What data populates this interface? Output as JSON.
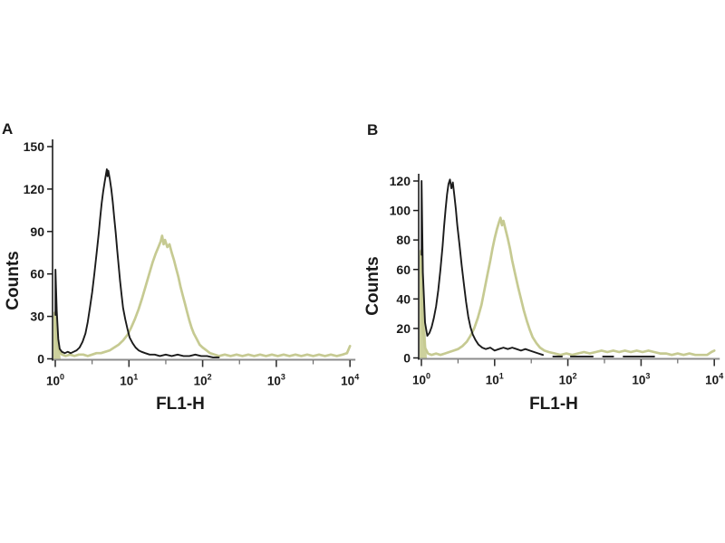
{
  "figure": {
    "background": "#ffffff",
    "panel_count": 2
  },
  "colors": {
    "black_curve": "#1b1b1b",
    "olive_curve": "#c6ca92",
    "olive_fill": "#cdd19d",
    "x_axis_line": "#8c8c8c",
    "axis_text": "#1a1a1a"
  },
  "chart_data": [
    {
      "type": "line",
      "panel_label": "A",
      "xlabel": "FL1-H",
      "ylabel": "Counts",
      "x_scale": "log10",
      "x_tick_base": "10",
      "x_tick_exponents": [
        0,
        1,
        2,
        3,
        4
      ],
      "x_minor_ticks_log": [
        0.5,
        1.5,
        2.5,
        3.5
      ],
      "xlim_log": [
        0,
        4
      ],
      "ylim": [
        0,
        150
      ],
      "yticks": [
        0,
        30,
        60,
        90,
        120,
        150
      ],
      "grid": false,
      "legend": "none",
      "series": [
        {
          "name": "olive-curve",
          "color": "#c6ca92",
          "stroke_width": 2.7,
          "left_spike_height": 33,
          "points": [
            [
              0.0,
              33
            ],
            [
              0.02,
              15
            ],
            [
              0.05,
              6
            ],
            [
              0.09,
              3
            ],
            [
              0.14,
              2
            ],
            [
              0.2,
              3
            ],
            [
              0.26,
              2
            ],
            [
              0.32,
              3
            ],
            [
              0.38,
              3
            ],
            [
              0.44,
              2
            ],
            [
              0.5,
              3
            ],
            [
              0.56,
              4
            ],
            [
              0.62,
              4
            ],
            [
              0.68,
              5
            ],
            [
              0.74,
              6
            ],
            [
              0.8,
              8
            ],
            [
              0.86,
              10
            ],
            [
              0.92,
              13
            ],
            [
              0.98,
              17
            ],
            [
              1.03,
              22
            ],
            [
              1.08,
              28
            ],
            [
              1.13,
              35
            ],
            [
              1.18,
              43
            ],
            [
              1.23,
              52
            ],
            [
              1.28,
              61
            ],
            [
              1.32,
              68
            ],
            [
              1.36,
              74
            ],
            [
              1.4,
              79
            ],
            [
              1.43,
              83
            ],
            [
              1.45,
              87
            ],
            [
              1.47,
              81
            ],
            [
              1.49,
              84
            ],
            [
              1.52,
              79
            ],
            [
              1.55,
              81
            ],
            [
              1.58,
              75
            ],
            [
              1.61,
              70
            ],
            [
              1.64,
              64
            ],
            [
              1.67,
              58
            ],
            [
              1.7,
              51
            ],
            [
              1.73,
              45
            ],
            [
              1.76,
              39
            ],
            [
              1.79,
              33
            ],
            [
              1.82,
              27
            ],
            [
              1.85,
              22
            ],
            [
              1.88,
              18
            ],
            [
              1.92,
              14
            ],
            [
              1.96,
              10
            ],
            [
              2.0,
              8
            ],
            [
              2.05,
              6
            ],
            [
              2.1,
              4
            ],
            [
              2.16,
              3
            ],
            [
              2.22,
              2
            ],
            [
              2.3,
              3
            ],
            [
              2.38,
              2
            ],
            [
              2.46,
              3
            ],
            [
              2.54,
              2
            ],
            [
              2.62,
              3
            ],
            [
              2.7,
              2
            ],
            [
              2.78,
              3
            ],
            [
              2.86,
              2
            ],
            [
              2.94,
              3
            ],
            [
              3.02,
              2
            ],
            [
              3.1,
              3
            ],
            [
              3.18,
              2
            ],
            [
              3.26,
              3
            ],
            [
              3.34,
              2
            ],
            [
              3.42,
              3
            ],
            [
              3.5,
              2
            ],
            [
              3.58,
              3
            ],
            [
              3.66,
              2
            ],
            [
              3.74,
              3
            ],
            [
              3.82,
              2
            ],
            [
              3.9,
              3
            ],
            [
              3.96,
              4
            ],
            [
              4.0,
              9
            ]
          ]
        },
        {
          "name": "black-curve",
          "color": "#1b1b1b",
          "stroke_width": 1.9,
          "left_spike_height": 63,
          "points": [
            [
              0.002,
              31
            ],
            [
              0.002,
              63
            ],
            [
              0.02,
              34
            ],
            [
              0.04,
              14
            ],
            [
              0.06,
              7
            ],
            [
              0.09,
              5
            ],
            [
              0.13,
              4
            ],
            [
              0.17,
              5
            ],
            [
              0.21,
              4
            ],
            [
              0.25,
              5
            ],
            [
              0.29,
              6
            ],
            [
              0.33,
              8
            ],
            [
              0.37,
              12
            ],
            [
              0.41,
              18
            ],
            [
              0.44,
              26
            ],
            [
              0.47,
              36
            ],
            [
              0.5,
              47
            ],
            [
              0.53,
              60
            ],
            [
              0.56,
              74
            ],
            [
              0.59,
              89
            ],
            [
              0.61,
              100
            ],
            [
              0.63,
              110
            ],
            [
              0.65,
              118
            ],
            [
              0.67,
              125
            ],
            [
              0.69,
              131
            ],
            [
              0.7,
              134
            ],
            [
              0.71,
              129
            ],
            [
              0.72,
              133
            ],
            [
              0.74,
              127
            ],
            [
              0.76,
              120
            ],
            [
              0.78,
              111
            ],
            [
              0.8,
              100
            ],
            [
              0.82,
              89
            ],
            [
              0.84,
              77
            ],
            [
              0.86,
              66
            ],
            [
              0.88,
              55
            ],
            [
              0.9,
              45
            ],
            [
              0.92,
              36
            ],
            [
              0.95,
              28
            ],
            [
              0.98,
              21
            ],
            [
              1.01,
              15
            ],
            [
              1.05,
              11
            ],
            [
              1.09,
              8
            ],
            [
              1.13,
              6
            ],
            [
              1.17,
              5
            ],
            [
              1.22,
              4
            ],
            [
              1.28,
              3
            ],
            [
              1.35,
              3
            ],
            [
              1.42,
              2
            ],
            [
              1.5,
              3
            ],
            [
              1.58,
              2
            ],
            [
              1.66,
              3
            ],
            [
              1.74,
              2
            ],
            [
              1.82,
              2
            ],
            [
              1.9,
              3
            ],
            [
              1.98,
              2
            ],
            [
              2.06,
              2
            ],
            [
              2.14,
              1
            ],
            [
              2.22,
              1
            ]
          ]
        }
      ]
    },
    {
      "type": "line",
      "panel_label": "B",
      "xlabel": "FL1-H",
      "ylabel": "Counts",
      "x_scale": "log10",
      "x_tick_base": "10",
      "x_tick_exponents": [
        0,
        1,
        2,
        3,
        4
      ],
      "x_minor_ticks_log": [
        0.5,
        1.5,
        2.5,
        3.5
      ],
      "xlim_log": [
        0,
        4
      ],
      "ylim": [
        0,
        120
      ],
      "yticks": [
        0,
        20,
        40,
        60,
        80,
        100,
        120
      ],
      "grid": false,
      "legend": "none",
      "series": [
        {
          "name": "olive-curve",
          "color": "#c6ca92",
          "stroke_width": 2.7,
          "left_spike_height": 73,
          "points": [
            [
              0.0,
              73
            ],
            [
              0.02,
              20
            ],
            [
              0.05,
              7
            ],
            [
              0.09,
              3
            ],
            [
              0.14,
              2
            ],
            [
              0.2,
              3
            ],
            [
              0.26,
              2
            ],
            [
              0.32,
              3
            ],
            [
              0.38,
              4
            ],
            [
              0.44,
              5
            ],
            [
              0.5,
              6
            ],
            [
              0.56,
              8
            ],
            [
              0.62,
              11
            ],
            [
              0.67,
              15
            ],
            [
              0.72,
              20
            ],
            [
              0.77,
              27
            ],
            [
              0.82,
              36
            ],
            [
              0.86,
              46
            ],
            [
              0.9,
              56
            ],
            [
              0.94,
              66
            ],
            [
              0.97,
              74
            ],
            [
              1.0,
              81
            ],
            [
              1.03,
              87
            ],
            [
              1.06,
              92
            ],
            [
              1.08,
              95
            ],
            [
              1.1,
              90
            ],
            [
              1.12,
              93
            ],
            [
              1.15,
              87
            ],
            [
              1.18,
              81
            ],
            [
              1.21,
              74
            ],
            [
              1.24,
              66
            ],
            [
              1.28,
              57
            ],
            [
              1.32,
              48
            ],
            [
              1.36,
              40
            ],
            [
              1.4,
              32
            ],
            [
              1.44,
              25
            ],
            [
              1.48,
              19
            ],
            [
              1.52,
              14
            ],
            [
              1.57,
              10
            ],
            [
              1.62,
              7
            ],
            [
              1.68,
              5
            ],
            [
              1.74,
              4
            ],
            [
              1.82,
              3
            ],
            [
              1.9,
              2
            ],
            [
              1.98,
              3
            ],
            [
              2.06,
              2
            ],
            [
              2.14,
              3
            ],
            [
              2.22,
              4
            ],
            [
              2.3,
              3
            ],
            [
              2.38,
              4
            ],
            [
              2.46,
              5
            ],
            [
              2.54,
              4
            ],
            [
              2.62,
              5
            ],
            [
              2.7,
              4
            ],
            [
              2.78,
              5
            ],
            [
              2.86,
              4
            ],
            [
              2.94,
              5
            ],
            [
              3.02,
              4
            ],
            [
              3.1,
              5
            ],
            [
              3.18,
              4
            ],
            [
              3.26,
              3
            ],
            [
              3.34,
              3
            ],
            [
              3.42,
              2
            ],
            [
              3.5,
              3
            ],
            [
              3.58,
              2
            ],
            [
              3.66,
              3
            ],
            [
              3.74,
              2
            ],
            [
              3.82,
              2
            ],
            [
              3.9,
              2
            ],
            [
              3.96,
              4
            ],
            [
              4.0,
              5
            ]
          ]
        },
        {
          "name": "black-curve",
          "color": "#1b1b1b",
          "stroke_width": 1.9,
          "left_spike_height": 120,
          "points": [
            [
              0.002,
              70
            ],
            [
              0.002,
              120
            ],
            [
              0.02,
              58
            ],
            [
              0.05,
              24
            ],
            [
              0.08,
              15
            ],
            [
              0.11,
              17
            ],
            [
              0.14,
              21
            ],
            [
              0.17,
              27
            ],
            [
              0.2,
              35
            ],
            [
              0.23,
              46
            ],
            [
              0.26,
              60
            ],
            [
              0.29,
              76
            ],
            [
              0.31,
              89
            ],
            [
              0.33,
              101
            ],
            [
              0.35,
              111
            ],
            [
              0.37,
              118
            ],
            [
              0.39,
              121
            ],
            [
              0.41,
              115
            ],
            [
              0.43,
              119
            ],
            [
              0.45,
              110
            ],
            [
              0.47,
              101
            ],
            [
              0.49,
              90
            ],
            [
              0.52,
              77
            ],
            [
              0.55,
              63
            ],
            [
              0.58,
              50
            ],
            [
              0.61,
              38
            ],
            [
              0.64,
              28
            ],
            [
              0.67,
              21
            ],
            [
              0.7,
              16
            ],
            [
              0.74,
              12
            ],
            [
              0.78,
              9
            ],
            [
              0.83,
              7
            ],
            [
              0.88,
              6
            ],
            [
              0.94,
              7
            ],
            [
              1.0,
              5
            ],
            [
              1.06,
              6
            ],
            [
              1.12,
              7
            ],
            [
              1.18,
              6
            ],
            [
              1.24,
              7
            ],
            [
              1.3,
              6
            ],
            [
              1.36,
              5
            ],
            [
              1.42,
              6
            ],
            [
              1.48,
              5
            ],
            [
              1.54,
              4
            ],
            [
              1.6,
              3
            ],
            [
              1.66,
              2
            ],
            null,
            [
              1.8,
              1
            ],
            [
              1.92,
              1
            ],
            null,
            [
              2.04,
              1
            ],
            [
              2.2,
              1
            ],
            [
              2.34,
              1
            ],
            null,
            [
              2.48,
              1
            ],
            [
              2.62,
              1
            ],
            null,
            [
              2.76,
              1
            ],
            [
              2.92,
              1
            ],
            [
              3.06,
              1
            ],
            [
              3.18,
              1
            ]
          ]
        }
      ]
    }
  ]
}
